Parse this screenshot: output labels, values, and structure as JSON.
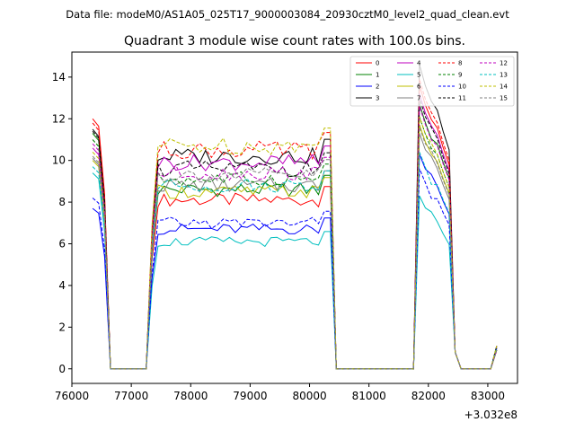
{
  "figure": {
    "suptitle": "Data file: modeM0/AS1A05_025T17_9000003084_20930cztM0_level2_quad_clean.evt"
  },
  "chart_data": {
    "type": "line",
    "title": "Quadrant 3 module wise count rates with 100.0s bins.",
    "xlabel": "",
    "ylabel": "",
    "x_offset_label": "+3.032e8",
    "xlim": [
      76000,
      83500
    ],
    "ylim": [
      -0.7,
      15.2
    ],
    "xticks": [
      76000,
      77000,
      78000,
      79000,
      80000,
      81000,
      82000,
      83000
    ],
    "yticks": [
      0,
      2,
      4,
      6,
      8,
      10,
      12,
      14
    ],
    "grid": false,
    "legend_position": "top-right",
    "legend_columns": 4,
    "segments": [
      {
        "start": 76350,
        "end": 76650,
        "drop_to": 77250
      },
      {
        "start": 77350,
        "end": 80350,
        "drop_to": 80450
      },
      {
        "start": 81800,
        "end": 82350,
        "drop_to": 83150
      }
    ],
    "series": [
      {
        "name": "0",
        "color": "#ff0000",
        "dashed": false,
        "start": 12.0,
        "plateau": 8.1,
        "flare": 13.6
      },
      {
        "name": "1",
        "color": "#008000",
        "dashed": false,
        "start": 11.3,
        "plateau": 8.6,
        "flare": 12.7
      },
      {
        "name": "2",
        "color": "#0000ff",
        "dashed": false,
        "start": 7.7,
        "plateau": 6.7,
        "flare": 10.3
      },
      {
        "name": "3",
        "color": "#000000",
        "dashed": false,
        "start": 11.5,
        "plateau": 10.2,
        "flare": 14.6
      },
      {
        "name": "4",
        "color": "#bf00bf",
        "dashed": false,
        "start": 10.6,
        "plateau": 9.9,
        "flare": 13.2
      },
      {
        "name": "5",
        "color": "#00bfbf",
        "dashed": false,
        "start": 9.4,
        "plateau": 6.1,
        "flare": 8.3
      },
      {
        "name": "6",
        "color": "#bfbf00",
        "dashed": false,
        "start": 10.0,
        "plateau": 8.5,
        "flare": 11.7
      },
      {
        "name": "7",
        "color": "#808080",
        "dashed": false,
        "start": 10.1,
        "plateau": 8.8,
        "flare": 11.3
      },
      {
        "name": "8",
        "color": "#ff0000",
        "dashed": true,
        "start": 11.8,
        "plateau": 10.5,
        "flare": 13.9
      },
      {
        "name": "9",
        "color": "#008000",
        "dashed": true,
        "start": 11.0,
        "plateau": 9.1,
        "flare": 12.1
      },
      {
        "name": "10",
        "color": "#0000ff",
        "dashed": true,
        "start": 8.2,
        "plateau": 7.0,
        "flare": 9.6
      },
      {
        "name": "11",
        "color": "#000000",
        "dashed": true,
        "start": 11.4,
        "plateau": 9.6,
        "flare": 13.0
      },
      {
        "name": "12",
        "color": "#bf00bf",
        "dashed": true,
        "start": 10.8,
        "plateau": 9.4,
        "flare": 12.6
      },
      {
        "name": "13",
        "color": "#00bfbf",
        "dashed": true,
        "start": 9.7,
        "plateau": 8.8,
        "flare": 10.4
      },
      {
        "name": "14",
        "color": "#bfbf00",
        "dashed": true,
        "start": 10.4,
        "plateau": 10.7,
        "flare": 12.1
      },
      {
        "name": "15",
        "color": "#808080",
        "dashed": true,
        "start": 10.2,
        "plateau": 9.3,
        "flare": 11.6
      }
    ]
  }
}
